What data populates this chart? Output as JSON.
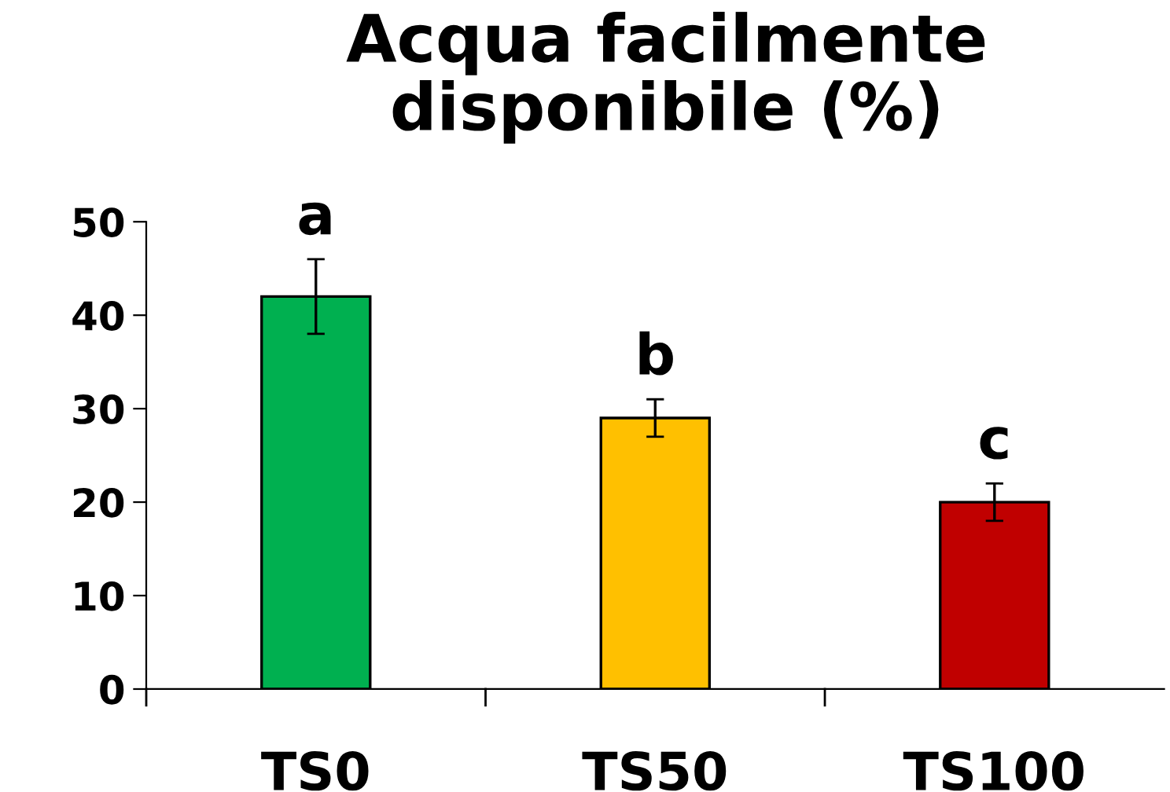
{
  "chart_data": {
    "type": "bar",
    "title": "Acqua facilmente\ndisponibile (%)",
    "categories": [
      "TS0",
      "TS50",
      "TS100"
    ],
    "values": [
      42,
      29,
      20
    ],
    "colors": [
      "#00b050",
      "#ffc000",
      "#c00000"
    ],
    "errors": [
      4,
      2,
      2
    ],
    "ylim": [
      0,
      50
    ],
    "yticks": [
      0,
      10,
      20,
      30,
      40,
      50
    ],
    "grid": false,
    "legend": false,
    "annotations": [
      {
        "text": "a",
        "x": "TS0",
        "y": 46
      },
      {
        "text": "b",
        "x": "TS50",
        "y": 31
      },
      {
        "text": "c",
        "x": "TS100",
        "y": 22
      }
    ]
  }
}
